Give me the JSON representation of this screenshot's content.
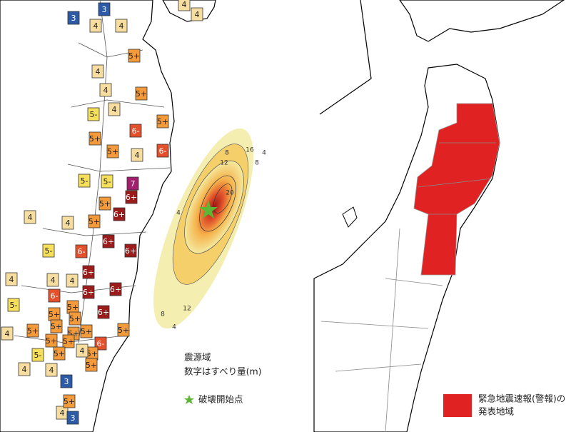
{
  "left_map": {
    "markers": [
      "3",
      "3",
      "4",
      "4",
      "4",
      "4",
      "5+",
      "4",
      "4",
      "5+",
      "5-",
      "4",
      "5+",
      "5+",
      "6-",
      "6-",
      "5+",
      "4",
      "5-",
      "5-",
      "7",
      "6+",
      "5+",
      "6+",
      "4",
      "4",
      "5+",
      "6+",
      "5-",
      "6-",
      "6+",
      "6+",
      "4",
      "4",
      "4",
      "6+",
      "6+",
      "6-",
      "5+",
      "5-",
      "5+",
      "5+",
      "6+",
      "5+",
      "5+",
      "5+",
      "5+",
      "5+",
      "4",
      "5+",
      "5+",
      "6-",
      "5-",
      "5+",
      "5+",
      "4",
      "4",
      "4",
      "5+",
      "3",
      "4",
      "5+",
      "3"
    ],
    "intensity_styles": {
      "3": {
        "fill": "#2c5aa6",
        "text": "#ffffff"
      },
      "4": {
        "fill": "#f7dea0",
        "text": "#222222"
      },
      "5-": {
        "fill": "#f6df5a",
        "text": "#222222"
      },
      "5+": {
        "fill": "#f39a3a",
        "text": "#222222"
      },
      "6-": {
        "fill": "#e4502c",
        "text": "#ffffff"
      },
      "6+": {
        "fill": "#9c1c1c",
        "text": "#ffffff"
      },
      "7": {
        "fill": "#a21f6e",
        "text": "#ffffff"
      }
    },
    "contour_labels": [
      "4",
      "8",
      "12",
      "16",
      "20",
      "8",
      "4",
      "12",
      "8",
      "4"
    ],
    "legend": {
      "area_title": "震源域",
      "area_desc": "数字はすべり量(m)",
      "start_point": "破壊開始点",
      "star_color": "#5cb834"
    }
  },
  "right_map": {
    "highlight_color": "#e02222",
    "legend": {
      "line1": "緊急地震速報(警報)の",
      "line2": "発表地域"
    }
  }
}
